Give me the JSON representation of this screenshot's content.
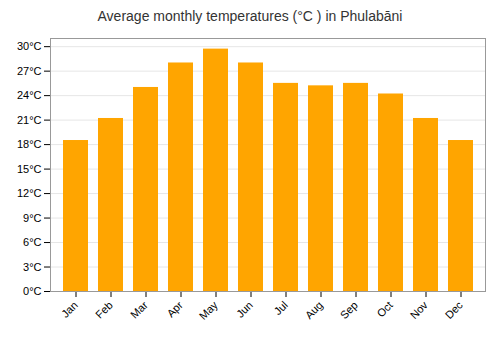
{
  "chart_data": {
    "type": "bar",
    "title": "Average monthly temperatures (°C ) in Phulabāni",
    "categories": [
      "Jan",
      "Feb",
      "Mar",
      "Apr",
      "May",
      "Jun",
      "Jul",
      "Aug",
      "Sep",
      "Oct",
      "Nov",
      "Dec"
    ],
    "values": [
      18.5,
      21.2,
      25.0,
      28.0,
      29.7,
      28.0,
      25.5,
      25.2,
      25.5,
      24.2,
      21.2,
      18.5
    ],
    "color": "#FFA500",
    "ylim": [
      0,
      31
    ],
    "yticks": [
      {
        "value": 0,
        "label": "0°C"
      },
      {
        "value": 3,
        "label": "3°C"
      },
      {
        "value": 6,
        "label": "6°C"
      },
      {
        "value": 9,
        "label": "9°C"
      },
      {
        "value": 12,
        "label": "12°C"
      },
      {
        "value": 15,
        "label": "15°C"
      },
      {
        "value": 18,
        "label": "18°C"
      },
      {
        "value": 21,
        "label": "21°C"
      },
      {
        "value": 24,
        "label": "24°C"
      },
      {
        "value": 27,
        "label": "27°C"
      },
      {
        "value": 30,
        "label": "30°C"
      }
    ],
    "grid": true
  }
}
